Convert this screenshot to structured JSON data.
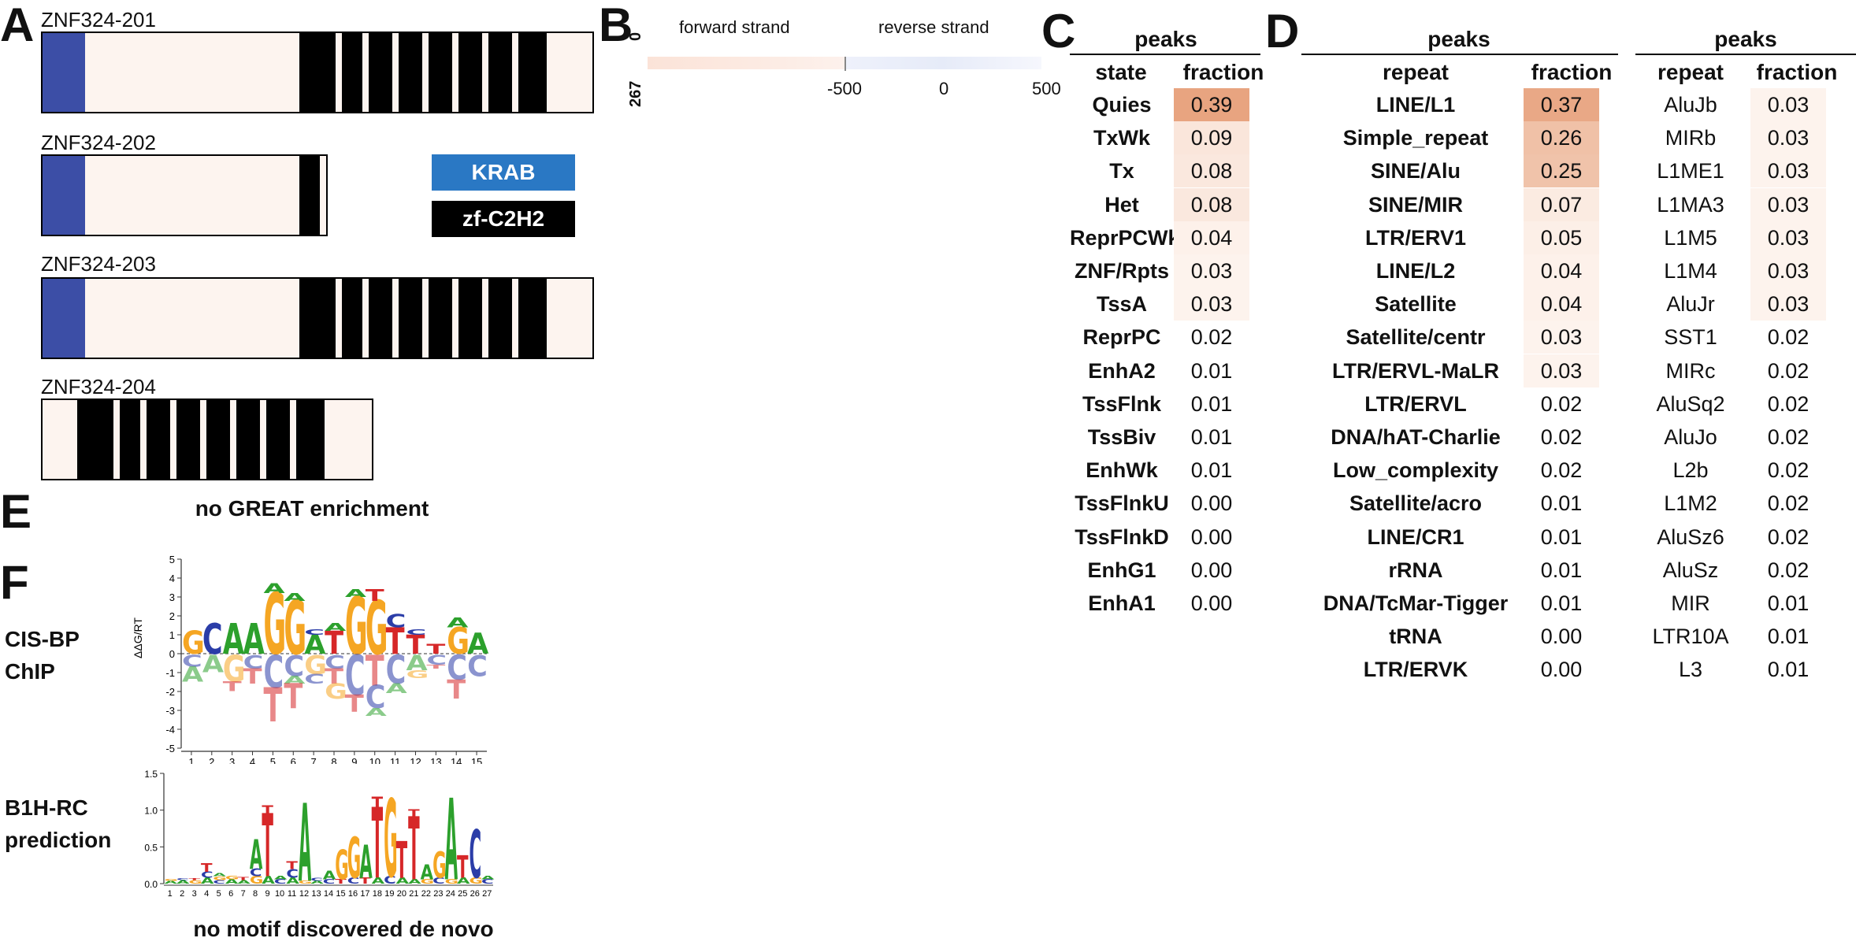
{
  "panelA": {
    "letter": "A",
    "isoforms": [
      {
        "name": "ZNF324-201"
      },
      {
        "name": "ZNF324-202"
      },
      {
        "name": "ZNF324-203"
      },
      {
        "name": "ZNF324-204"
      }
    ],
    "legend": {
      "krab": "KRAB",
      "zf": "zf-C2H2",
      "krab_color": "#2a78c4",
      "zf_color": "#000000"
    },
    "krab_color": "#3c4ea6"
  },
  "panelB": {
    "letter": "B",
    "forward_label": "forward strand",
    "reverse_label": "reverse strand",
    "y_top": "0",
    "y_bottom": "267",
    "ticks": [
      "-500",
      "0",
      "500"
    ]
  },
  "panelC": {
    "letter": "C",
    "title": "peaks",
    "headers": {
      "state": "state",
      "fraction": "fraction"
    },
    "rows": [
      {
        "state": "Quies",
        "fraction": "0.39"
      },
      {
        "state": "TxWk",
        "fraction": "0.09"
      },
      {
        "state": "Tx",
        "fraction": "0.08"
      },
      {
        "state": "Het",
        "fraction": "0.08"
      },
      {
        "state": "ReprPCWk",
        "fraction": "0.04"
      },
      {
        "state": "ZNF/Rpts",
        "fraction": "0.03"
      },
      {
        "state": "TssA",
        "fraction": "0.03"
      },
      {
        "state": "ReprPC",
        "fraction": "0.02"
      },
      {
        "state": "EnhA2",
        "fraction": "0.01"
      },
      {
        "state": "TssFlnk",
        "fraction": "0.01"
      },
      {
        "state": "TssBiv",
        "fraction": "0.01"
      },
      {
        "state": "EnhWk",
        "fraction": "0.01"
      },
      {
        "state": "TssFlnkU",
        "fraction": "0.00"
      },
      {
        "state": "TssFlnkD",
        "fraction": "0.00"
      },
      {
        "state": "EnhG1",
        "fraction": "0.00"
      },
      {
        "state": "EnhA1",
        "fraction": "0.00"
      }
    ]
  },
  "panelD": {
    "letter": "D",
    "left": {
      "title": "peaks",
      "headers": {
        "repeat": "repeat",
        "fraction": "fraction"
      },
      "rows": [
        {
          "repeat": "LINE/L1",
          "fraction": "0.37"
        },
        {
          "repeat": "Simple_repeat",
          "fraction": "0.26"
        },
        {
          "repeat": "SINE/Alu",
          "fraction": "0.25"
        },
        {
          "repeat": "SINE/MIR",
          "fraction": "0.07"
        },
        {
          "repeat": "LTR/ERV1",
          "fraction": "0.05"
        },
        {
          "repeat": "LINE/L2",
          "fraction": "0.04"
        },
        {
          "repeat": "Satellite",
          "fraction": "0.04"
        },
        {
          "repeat": "Satellite/centr",
          "fraction": "0.03"
        },
        {
          "repeat": "LTR/ERVL-MaLR",
          "fraction": "0.03"
        },
        {
          "repeat": "LTR/ERVL",
          "fraction": "0.02"
        },
        {
          "repeat": "DNA/hAT-Charlie",
          "fraction": "0.02"
        },
        {
          "repeat": "Low_complexity",
          "fraction": "0.02"
        },
        {
          "repeat": "Satellite/acro",
          "fraction": "0.01"
        },
        {
          "repeat": "LINE/CR1",
          "fraction": "0.01"
        },
        {
          "repeat": "rRNA",
          "fraction": "0.01"
        },
        {
          "repeat": "DNA/TcMar-Tigger",
          "fraction": "0.01"
        },
        {
          "repeat": "tRNA",
          "fraction": "0.00"
        },
        {
          "repeat": "LTR/ERVK",
          "fraction": "0.00"
        }
      ]
    },
    "right": {
      "title": "peaks",
      "headers": {
        "repeat": "repeat",
        "fraction": "fraction"
      },
      "rows": [
        {
          "repeat": "AluJb",
          "fraction": "0.03"
        },
        {
          "repeat": "MIRb",
          "fraction": "0.03"
        },
        {
          "repeat": "L1ME1",
          "fraction": "0.03"
        },
        {
          "repeat": "L1MA3",
          "fraction": "0.03"
        },
        {
          "repeat": "L1M5",
          "fraction": "0.03"
        },
        {
          "repeat": "L1M4",
          "fraction": "0.03"
        },
        {
          "repeat": "AluJr",
          "fraction": "0.03"
        },
        {
          "repeat": "SST1",
          "fraction": "0.02"
        },
        {
          "repeat": "MIRc",
          "fraction": "0.02"
        },
        {
          "repeat": "AluSq2",
          "fraction": "0.02"
        },
        {
          "repeat": "AluJo",
          "fraction": "0.02"
        },
        {
          "repeat": "L2b",
          "fraction": "0.02"
        },
        {
          "repeat": "L1M2",
          "fraction": "0.02"
        },
        {
          "repeat": "AluSz6",
          "fraction": "0.02"
        },
        {
          "repeat": "AluSz",
          "fraction": "0.02"
        },
        {
          "repeat": "MIR",
          "fraction": "0.01"
        },
        {
          "repeat": "LTR10A",
          "fraction": "0.01"
        },
        {
          "repeat": "L3",
          "fraction": "0.01"
        }
      ]
    }
  },
  "panelE": {
    "letter": "E",
    "text": "no GREAT enrichment"
  },
  "panelF": {
    "letter": "F",
    "cisbp_label_1": "CIS-BP",
    "cisbp_label_2": "ChIP",
    "b1h_label_1": "B1H-RC",
    "b1h_label_2": "prediction",
    "cisbp_ylabel": "ΔΔG/RT",
    "cisbp_yticks": [
      "5",
      "4",
      "3",
      "2",
      "1",
      "0",
      "-1",
      "-2",
      "-3",
      "-4",
      "-5"
    ],
    "cisbp_xticks": [
      "1",
      "2",
      "3",
      "4",
      "5",
      "6",
      "7",
      "8",
      "9",
      "10",
      "11",
      "12",
      "13",
      "14",
      "15"
    ],
    "b1h_yticks": [
      "1.5",
      "1.0",
      "0.5",
      "0.0"
    ],
    "b1h_xticks": [
      "1",
      "2",
      "3",
      "4",
      "5",
      "6",
      "7",
      "8",
      "9",
      "10",
      "11",
      "12",
      "13",
      "14",
      "15",
      "16",
      "17",
      "18",
      "19",
      "20",
      "21",
      "22",
      "23",
      "24",
      "25",
      "26",
      "27"
    ],
    "caption": "no motif discovered de novo",
    "base_colors": {
      "A": "#2ca02c",
      "C": "#2b3da8",
      "G": "#f5a623",
      "T": "#d62728"
    }
  }
}
